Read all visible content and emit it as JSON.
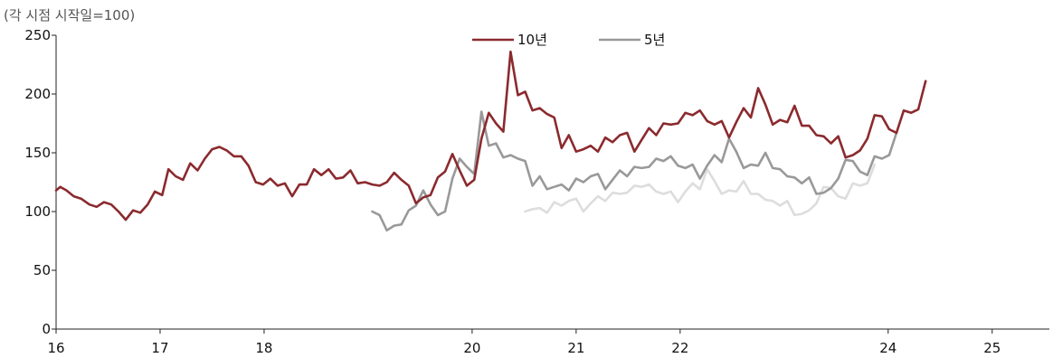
{
  "chart_data": {
    "type": "line",
    "title": "",
    "unit_note": "(각 시점 시작일=100)",
    "xlabel": "",
    "ylabel": "",
    "xlim": [
      16,
      25.55
    ],
    "ylim": [
      0,
      250
    ],
    "y_ticks": [
      0,
      50,
      100,
      150,
      200,
      250
    ],
    "x_ticks": [
      {
        "value": 16,
        "label": "16"
      },
      {
        "value": 17,
        "label": "17"
      },
      {
        "value": 18,
        "label": "18"
      },
      {
        "value": 20,
        "label": "20"
      },
      {
        "value": 21,
        "label": "21"
      },
      {
        "value": 22,
        "label": "22"
      },
      {
        "value": 24,
        "label": "24"
      },
      {
        "value": 25,
        "label": "25"
      }
    ],
    "grid": false,
    "legend_position": "top-center",
    "series": [
      {
        "name": "10년",
        "color": "#8b2a2e",
        "show_in_legend": true,
        "points": [
          [
            16.0,
            118
          ],
          [
            16.04,
            121
          ],
          [
            16.1,
            118
          ],
          [
            16.17,
            113
          ],
          [
            16.24,
            111
          ],
          [
            16.32,
            106
          ],
          [
            16.39,
            104
          ],
          [
            16.46,
            108
          ],
          [
            16.53,
            106
          ],
          [
            16.6,
            100
          ],
          [
            16.67,
            93
          ],
          [
            16.74,
            101
          ],
          [
            16.81,
            99
          ],
          [
            16.88,
            106
          ],
          [
            16.95,
            117
          ],
          [
            17.02,
            114
          ],
          [
            17.08,
            136
          ],
          [
            17.15,
            130
          ],
          [
            17.22,
            127
          ],
          [
            17.29,
            141
          ],
          [
            17.36,
            135
          ],
          [
            17.43,
            145
          ],
          [
            17.5,
            153
          ],
          [
            17.57,
            155
          ],
          [
            17.64,
            152
          ],
          [
            17.71,
            147
          ],
          [
            17.78,
            147
          ],
          [
            17.85,
            139
          ],
          [
            17.92,
            125
          ],
          [
            17.99,
            123
          ],
          [
            18.06,
            128
          ],
          [
            18.13,
            122
          ],
          [
            18.2,
            124
          ],
          [
            18.27,
            113
          ],
          [
            18.34,
            123
          ],
          [
            18.41,
            123
          ],
          [
            18.48,
            136
          ],
          [
            18.55,
            131
          ],
          [
            18.62,
            136
          ],
          [
            18.69,
            128
          ],
          [
            18.76,
            129
          ],
          [
            18.83,
            135
          ],
          [
            18.9,
            124
          ],
          [
            18.97,
            125
          ],
          [
            19.04,
            123
          ],
          [
            19.11,
            122
          ],
          [
            19.18,
            125
          ],
          [
            19.25,
            133
          ],
          [
            19.32,
            127
          ],
          [
            19.39,
            122
          ],
          [
            19.46,
            107
          ],
          [
            19.53,
            112
          ],
          [
            19.6,
            114
          ],
          [
            19.67,
            129
          ],
          [
            19.74,
            134
          ],
          [
            19.81,
            149
          ],
          [
            19.88,
            135
          ],
          [
            19.95,
            122
          ],
          [
            20.02,
            127
          ],
          [
            20.09,
            162
          ],
          [
            20.16,
            184
          ],
          [
            20.23,
            175
          ],
          [
            20.3,
            168
          ],
          [
            20.37,
            236
          ],
          [
            20.44,
            199
          ],
          [
            20.51,
            202
          ],
          [
            20.58,
            186
          ],
          [
            20.65,
            188
          ],
          [
            20.72,
            183
          ],
          [
            20.79,
            180
          ],
          [
            20.86,
            154
          ],
          [
            20.93,
            165
          ],
          [
            21.0,
            151
          ],
          [
            21.07,
            153
          ],
          [
            21.14,
            156
          ],
          [
            21.21,
            151
          ],
          [
            21.28,
            163
          ],
          [
            21.35,
            159
          ],
          [
            21.42,
            165
          ],
          [
            21.49,
            167
          ],
          [
            21.56,
            151
          ],
          [
            21.63,
            161
          ],
          [
            21.7,
            171
          ],
          [
            21.77,
            165
          ],
          [
            21.84,
            175
          ],
          [
            21.91,
            174
          ],
          [
            21.98,
            175
          ],
          [
            22.05,
            184
          ],
          [
            22.12,
            182
          ],
          [
            22.19,
            186
          ],
          [
            22.26,
            177
          ],
          [
            22.33,
            174
          ],
          [
            22.4,
            177
          ],
          [
            22.47,
            163
          ],
          [
            22.54,
            176
          ],
          [
            22.61,
            188
          ],
          [
            22.68,
            180
          ],
          [
            22.75,
            205
          ],
          [
            22.82,
            191
          ],
          [
            22.89,
            174
          ],
          [
            22.96,
            178
          ],
          [
            23.03,
            176
          ],
          [
            23.1,
            190
          ],
          [
            23.17,
            173
          ],
          [
            23.24,
            173
          ],
          [
            23.31,
            165
          ],
          [
            23.38,
            164
          ],
          [
            23.45,
            158
          ],
          [
            23.52,
            164
          ],
          [
            23.59,
            146
          ],
          [
            23.66,
            148
          ],
          [
            23.73,
            152
          ],
          [
            23.8,
            162
          ],
          [
            23.87,
            182
          ],
          [
            23.94,
            181
          ],
          [
            24.01,
            170
          ],
          [
            24.08,
            167
          ],
          [
            24.15,
            186
          ],
          [
            24.22,
            184
          ],
          [
            24.29,
            187
          ],
          [
            24.36,
            211
          ]
        ]
      },
      {
        "name": "5년",
        "color": "#999999",
        "show_in_legend": true,
        "points": [
          [
            19.04,
            100
          ],
          [
            19.11,
            97
          ],
          [
            19.18,
            84
          ],
          [
            19.25,
            88
          ],
          [
            19.32,
            89
          ],
          [
            19.39,
            101
          ],
          [
            19.46,
            105
          ],
          [
            19.53,
            118
          ],
          [
            19.6,
            106
          ],
          [
            19.67,
            97
          ],
          [
            19.74,
            100
          ],
          [
            19.81,
            128
          ],
          [
            19.88,
            145
          ],
          [
            19.95,
            138
          ],
          [
            20.02,
            132
          ],
          [
            20.09,
            185
          ],
          [
            20.16,
            156
          ],
          [
            20.23,
            158
          ],
          [
            20.3,
            146
          ],
          [
            20.37,
            148
          ],
          [
            20.44,
            145
          ],
          [
            20.51,
            143
          ],
          [
            20.58,
            122
          ],
          [
            20.65,
            130
          ],
          [
            20.72,
            119
          ],
          [
            20.79,
            121
          ],
          [
            20.86,
            123
          ],
          [
            20.93,
            118
          ],
          [
            21.0,
            128
          ],
          [
            21.07,
            125
          ],
          [
            21.14,
            130
          ],
          [
            21.21,
            132
          ],
          [
            21.28,
            119
          ],
          [
            21.35,
            127
          ],
          [
            21.42,
            135
          ],
          [
            21.49,
            130
          ],
          [
            21.56,
            138
          ],
          [
            21.63,
            137
          ],
          [
            21.7,
            138
          ],
          [
            21.77,
            145
          ],
          [
            21.84,
            143
          ],
          [
            21.91,
            147
          ],
          [
            21.98,
            139
          ],
          [
            22.05,
            137
          ],
          [
            22.12,
            140
          ],
          [
            22.19,
            128
          ],
          [
            22.26,
            139
          ],
          [
            22.33,
            148
          ],
          [
            22.4,
            142
          ],
          [
            22.47,
            162
          ],
          [
            22.54,
            151
          ],
          [
            22.61,
            137
          ],
          [
            22.68,
            140
          ],
          [
            22.75,
            139
          ],
          [
            22.82,
            150
          ],
          [
            22.89,
            137
          ],
          [
            22.96,
            136
          ],
          [
            23.03,
            130
          ],
          [
            23.1,
            129
          ],
          [
            23.17,
            124
          ],
          [
            23.24,
            129
          ],
          [
            23.31,
            115
          ],
          [
            23.38,
            116
          ],
          [
            23.45,
            120
          ],
          [
            23.52,
            128
          ],
          [
            23.59,
            144
          ],
          [
            23.66,
            143
          ],
          [
            23.73,
            134
          ],
          [
            23.8,
            131
          ],
          [
            23.87,
            147
          ],
          [
            23.94,
            145
          ],
          [
            24.01,
            148
          ],
          [
            24.08,
            167
          ]
        ]
      },
      {
        "name": "",
        "color": "#dddddd",
        "show_in_legend": false,
        "points": [
          [
            20.51,
            100
          ],
          [
            20.58,
            102
          ],
          [
            20.65,
            103
          ],
          [
            20.72,
            99
          ],
          [
            20.79,
            108
          ],
          [
            20.86,
            105
          ],
          [
            20.93,
            109
          ],
          [
            21.0,
            111
          ],
          [
            21.07,
            100
          ],
          [
            21.14,
            107
          ],
          [
            21.21,
            113
          ],
          [
            21.28,
            109
          ],
          [
            21.35,
            116
          ],
          [
            21.42,
            115
          ],
          [
            21.49,
            116
          ],
          [
            21.56,
            122
          ],
          [
            21.63,
            121
          ],
          [
            21.7,
            123
          ],
          [
            21.77,
            117
          ],
          [
            21.84,
            115
          ],
          [
            21.91,
            117
          ],
          [
            21.98,
            108
          ],
          [
            22.05,
            117
          ],
          [
            22.12,
            124
          ],
          [
            22.19,
            119
          ],
          [
            22.26,
            136
          ],
          [
            22.33,
            126
          ],
          [
            22.4,
            115
          ],
          [
            22.47,
            118
          ],
          [
            22.54,
            117
          ],
          [
            22.61,
            126
          ],
          [
            22.68,
            115
          ],
          [
            22.75,
            115
          ],
          [
            22.82,
            110
          ],
          [
            22.89,
            109
          ],
          [
            22.96,
            105
          ],
          [
            23.03,
            109
          ],
          [
            23.1,
            97
          ],
          [
            23.17,
            98
          ],
          [
            23.24,
            101
          ],
          [
            23.31,
            107
          ],
          [
            23.38,
            121
          ],
          [
            23.45,
            120
          ],
          [
            23.52,
            113
          ],
          [
            23.59,
            111
          ],
          [
            23.66,
            124
          ],
          [
            23.73,
            122
          ],
          [
            23.8,
            124
          ],
          [
            23.87,
            140
          ]
        ]
      }
    ]
  }
}
